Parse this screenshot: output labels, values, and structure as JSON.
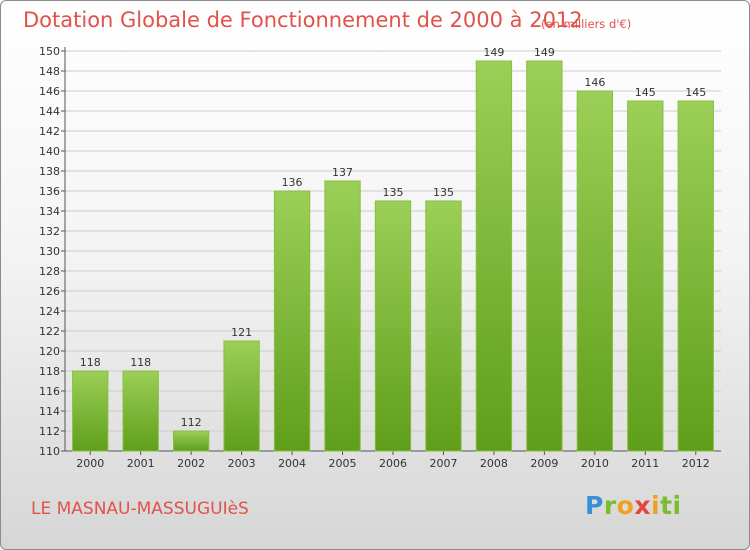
{
  "header": {
    "title": "Dotation Globale de Fonctionnement de 2000 à 2012",
    "unit_note": "(en milliers d'€)"
  },
  "footer": {
    "commune": "LE MASNAU-MASSUGUIèS",
    "logo_letters": [
      "P",
      "r",
      "o",
      "x",
      "i",
      "ti"
    ]
  },
  "colors": {
    "bar_top": "#9ccf57",
    "bar_bottom": "#5f9e1a",
    "title": "#e0524a",
    "grid": "#cccccc"
  },
  "chart_data": {
    "type": "bar",
    "title": "Dotation Globale de Fonctionnement de 2000 à 2012",
    "subtitle": "(en milliers d'€)",
    "xlabel": "",
    "ylabel": "",
    "categories": [
      "2000",
      "2001",
      "2002",
      "2003",
      "2004",
      "2005",
      "2006",
      "2007",
      "2008",
      "2009",
      "2010",
      "2011",
      "2012"
    ],
    "values": [
      118,
      118,
      112,
      121,
      136,
      137,
      135,
      135,
      149,
      149,
      146,
      145,
      145
    ],
    "ylim": [
      110,
      150
    ],
    "ytick_step": 2,
    "grid": true,
    "data_labels": true
  }
}
